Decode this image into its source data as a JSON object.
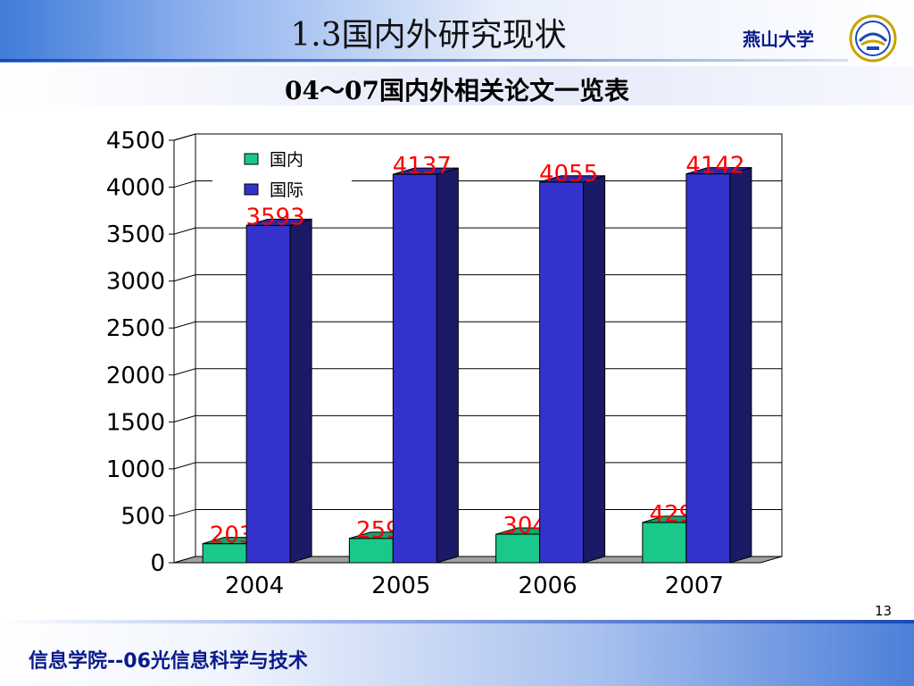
{
  "slide": {
    "title": "1.3国内外研究现状",
    "university": "燕山大学",
    "subtitle": "04～07国内外相关论文一览表",
    "page_number": "13",
    "footer": "信息学院--06光信息科学与技术"
  },
  "colors": {
    "domestic": "#1ac98a",
    "international": "#3333cc",
    "data_label": "#ff0000",
    "header_blue": "#1a49b8"
  },
  "chart_data": {
    "type": "bar",
    "title": "",
    "xlabel": "",
    "ylabel": "",
    "categories": [
      "2004",
      "2005",
      "2006",
      "2007"
    ],
    "series": [
      {
        "name": "国内",
        "values": [
          203,
          259,
          304,
          429
        ]
      },
      {
        "name": "国际",
        "values": [
          3593,
          4137,
          4055,
          4142
        ]
      }
    ],
    "ylim": [
      0,
      4500
    ],
    "yticks": [
      0,
      500,
      1000,
      1500,
      2000,
      2500,
      3000,
      3500,
      4000,
      4500
    ],
    "grid": true,
    "legend_position": "top-left",
    "style": "3d-clustered-column"
  }
}
